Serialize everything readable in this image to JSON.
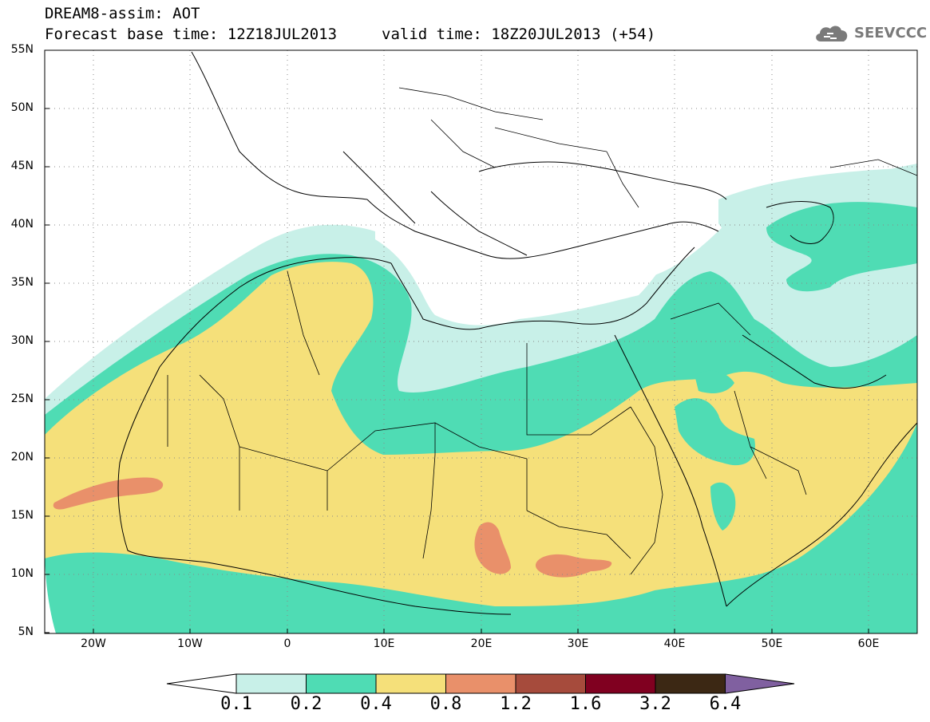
{
  "title": {
    "line1": "DREAM8-assim: AOT",
    "line2": "Forecast base time: 12Z18JUL2013",
    "valid": "valid time: 18Z20JUL2013 (+54)"
  },
  "logo": {
    "text": "SEEVCCC",
    "icon": "cloud-icon",
    "color": "#7a7a7a"
  },
  "map": {
    "region": "North Africa / Mediterranean / Middle East",
    "lat_ticks": [
      "55N",
      "50N",
      "45N",
      "40N",
      "35N",
      "30N",
      "25N",
      "20N",
      "15N",
      "10N",
      "5N"
    ],
    "lon_ticks": [
      "20W",
      "10W",
      "0",
      "10E",
      "20E",
      "30E",
      "40E",
      "50E",
      "60E"
    ]
  },
  "colorbar": {
    "labels": [
      "0.1",
      "0.2",
      "0.4",
      "0.8",
      "1.2",
      "1.6",
      "3.2",
      "6.4"
    ],
    "colors": [
      "#ffffff",
      "#c8f0e8",
      "#4fdcb4",
      "#f5e07a",
      "#e9906a",
      "#a64b3c",
      "#800020",
      "#3c2814",
      "#8060a0"
    ]
  },
  "chart_data": {
    "type": "heatmap",
    "variable": "AOT",
    "xlim": [
      -25,
      65
    ],
    "ylim": [
      5,
      55
    ],
    "levels": [
      0.1,
      0.2,
      0.4,
      0.8,
      1.2,
      1.6,
      3.2,
      6.4
    ],
    "fill_colors": {
      "0.1": "#c8f0e8",
      "0.2": "#4fdcb4",
      "0.4": "#f5e07a",
      "0.8": "#e9906a",
      "1.2": "#a64b3c",
      "1.6": "#800020",
      "3.2": "#3c2814",
      "6.4": "#8060a0"
    }
  }
}
